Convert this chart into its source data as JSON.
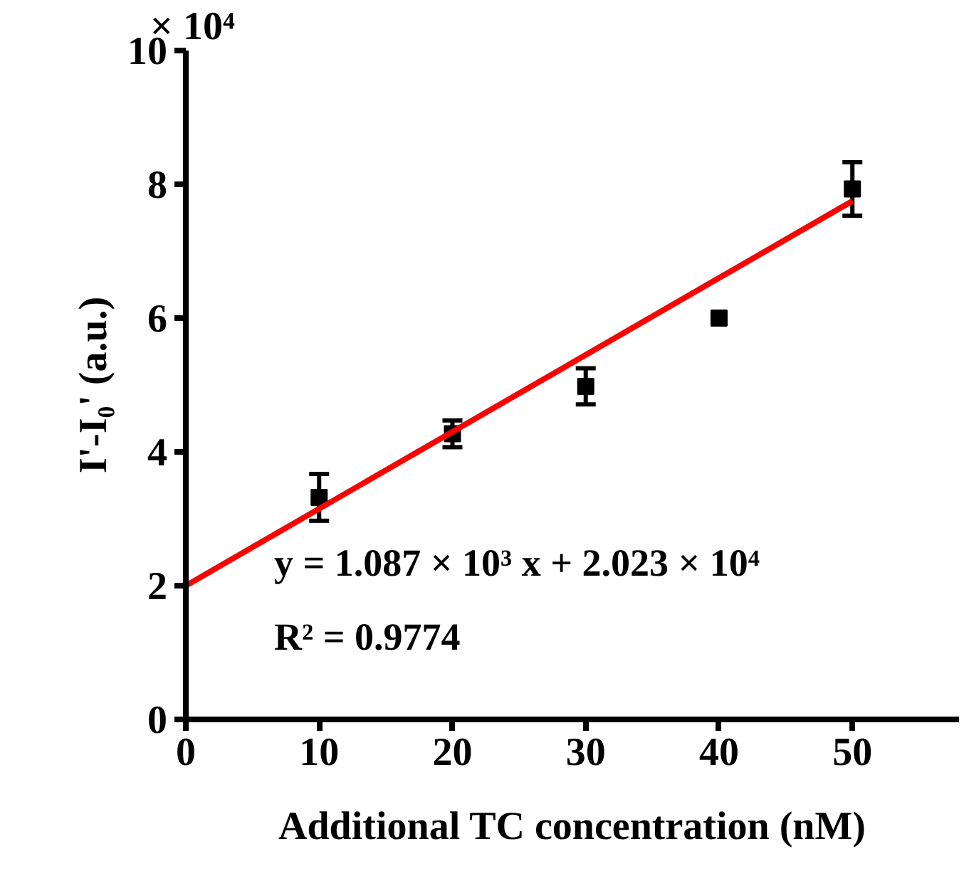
{
  "chart_data": {
    "type": "scatter",
    "xlabel": "Additional TC concentration (nM)",
    "ylabel": "I'-I₀' (a.u.)",
    "x": [
      10,
      20,
      30,
      40,
      50
    ],
    "series": [
      {
        "color": "#000000",
        "values": [
          3.32,
          4.27,
          4.98,
          6.0,
          7.93
        ],
        "errors": [
          0.35,
          0.2,
          0.27,
          null,
          0.4
        ],
        "marker": "square"
      },
      {
        "type": "line",
        "color": "#ff0000",
        "x": [
          0,
          50
        ],
        "values": [
          2.0,
          7.75
        ],
        "line_style": "solid",
        "marker": "none"
      }
    ],
    "xlim": [
      0,
      58
    ],
    "xticks": [
      0,
      10,
      20,
      30,
      40,
      50
    ],
    "ylim": [
      0,
      10
    ],
    "yticks": [
      0,
      2,
      4,
      6,
      8,
      10
    ],
    "annotations": [
      "× 10⁴",
      "y = 1.087 × 10³ x + 2.023 × 10⁴",
      "R² = 0.9774"
    ],
    "grid": false
  }
}
